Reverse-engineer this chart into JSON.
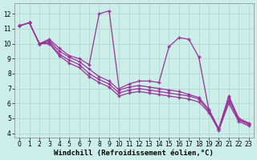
{
  "xlabel": "Windchill (Refroidissement éolien,°C)",
  "ylabel": "",
  "background_color": "#cceee8",
  "line_color": "#993399",
  "xlim": [
    -0.5,
    23.5
  ],
  "ylim": [
    3.7,
    12.7
  ],
  "yticks": [
    4,
    5,
    6,
    7,
    8,
    9,
    10,
    11,
    12
  ],
  "xticks": [
    0,
    1,
    2,
    3,
    4,
    5,
    6,
    7,
    8,
    9,
    10,
    11,
    12,
    13,
    14,
    15,
    16,
    17,
    18,
    19,
    20,
    21,
    22,
    23
  ],
  "lines": [
    {
      "x": [
        0,
        1,
        2,
        3,
        4,
        5,
        6,
        7,
        8,
        9,
        10,
        11,
        12,
        13,
        14,
        15,
        16,
        17,
        18,
        19,
        20,
        21,
        22,
        23
      ],
      "y": [
        11.2,
        11.4,
        10.0,
        10.3,
        9.7,
        9.2,
        9.0,
        8.6,
        12.0,
        12.2,
        7.0,
        7.3,
        7.5,
        7.5,
        7.4,
        9.8,
        10.4,
        10.3,
        9.1,
        5.6,
        4.3,
        6.5,
        5.0,
        4.6
      ]
    },
    {
      "x": [
        0,
        1,
        2,
        3,
        4,
        5,
        6,
        7,
        8,
        9,
        10,
        11,
        12,
        13,
        14,
        15,
        16,
        17,
        18,
        19,
        20,
        21,
        22,
        23
      ],
      "y": [
        11.2,
        11.4,
        10.0,
        10.2,
        9.5,
        9.1,
        8.8,
        8.3,
        7.8,
        7.5,
        6.9,
        7.1,
        7.2,
        7.1,
        7.0,
        6.9,
        6.8,
        6.6,
        6.4,
        5.6,
        4.3,
        6.4,
        5.0,
        4.7
      ]
    },
    {
      "x": [
        0,
        1,
        2,
        3,
        4,
        5,
        6,
        7,
        8,
        9,
        10,
        11,
        12,
        13,
        14,
        15,
        16,
        17,
        18,
        19,
        20,
        21,
        22,
        23
      ],
      "y": [
        11.2,
        11.4,
        10.0,
        10.1,
        9.3,
        8.9,
        8.6,
        8.0,
        7.6,
        7.3,
        6.7,
        6.9,
        7.0,
        6.9,
        6.8,
        6.7,
        6.6,
        6.5,
        6.3,
        5.5,
        4.3,
        6.2,
        4.9,
        4.6
      ]
    },
    {
      "x": [
        0,
        1,
        2,
        3,
        4,
        5,
        6,
        7,
        8,
        9,
        10,
        11,
        12,
        13,
        14,
        15,
        16,
        17,
        18,
        19,
        20,
        21,
        22,
        23
      ],
      "y": [
        11.2,
        11.4,
        10.0,
        10.0,
        9.2,
        8.7,
        8.4,
        7.8,
        7.4,
        7.1,
        6.5,
        6.7,
        6.8,
        6.7,
        6.6,
        6.5,
        6.4,
        6.3,
        6.1,
        5.4,
        4.2,
        6.0,
        4.8,
        4.5
      ]
    }
  ],
  "grid_color": "#aad4cc",
  "tick_fontsize": 5.5,
  "xlabel_fontsize": 6.5,
  "marker": "+",
  "markersize": 3,
  "linewidth": 0.9
}
